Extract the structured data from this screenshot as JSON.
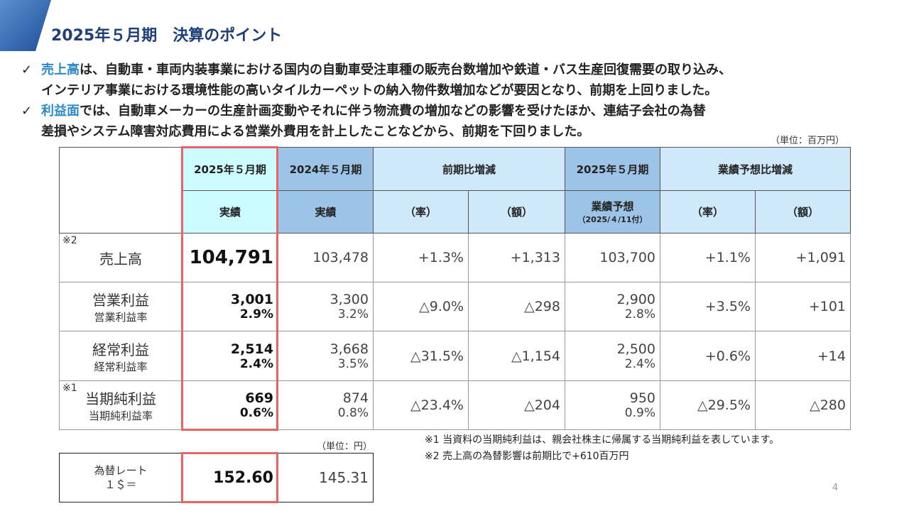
{
  "title": "2025年５月期　決算のポイント",
  "bullets": [
    {
      "hl": "売上高",
      "l1": "は、自動車・車両内装事業における国内の自動車受注車種の販売台数増加や鉄道・バス生産回復需要の取り込み、",
      "l2": "インテリア事業における環境性能の高いタイルカーペットの納入物件数増加などが要因となり、前期を上回りました。"
    },
    {
      "hl": "利益面",
      "l1": "では、自動車メーカーの生産計画変動やそれに伴う物流費の増加などの影響を受けたほか、連結子会社の為替",
      "l2": "差損やシステム障害対応費用による営業外費用を計上したことなどから、前期を下回りました。"
    }
  ],
  "check": "✓",
  "unit_main": "（単位：百万円）",
  "unit_fx": "（単位：円）",
  "header": {
    "c1": "2025年５月期",
    "c2": "2024年５月期",
    "c3": "前期比増減",
    "c5": "2025年５月期",
    "c6": "業績予想比増減",
    "c1b": "実績",
    "c2b": "実績",
    "rate": "（率）",
    "amt": "（額）",
    "c5b": "業績予想",
    "c5c": "（2025/４/11付）"
  },
  "rows": [
    {
      "label": "売上高",
      "note": "※2",
      "v": [
        "104,791",
        "103,478",
        "+1.3%",
        "+1,313",
        "103,700",
        "+1.1%",
        "+1,091"
      ]
    },
    {
      "label": "営業利益",
      "sub": "営業利益率",
      "v": [
        "3,001",
        "3,300",
        "△9.0%",
        "△298",
        "2,900",
        "+3.5%",
        "+101"
      ],
      "s": [
        "2.9%",
        "3.2%",
        "",
        "",
        "2.8%",
        "",
        ""
      ]
    },
    {
      "label": "経常利益",
      "sub": "経常利益率",
      "v": [
        "2,514",
        "3,668",
        "△31.5%",
        "△1,154",
        "2,500",
        "+0.6%",
        "+14"
      ],
      "s": [
        "2.4%",
        "3.5%",
        "",
        "",
        "2.4%",
        "",
        ""
      ]
    },
    {
      "label": "当期純利益",
      "note": "※1",
      "sub": "当期純利益率",
      "v": [
        "669",
        "874",
        "△23.4%",
        "△204",
        "950",
        "△29.5%",
        "△280"
      ],
      "s": [
        "0.6%",
        "0.8%",
        "",
        "",
        "0.9%",
        "",
        ""
      ]
    }
  ],
  "footnotes": [
    "※1 当資料の当期純利益は、親会社株主に帰属する当期純利益を表しています。",
    "※2 売上高の為替影響は前期比で+610百万円"
  ],
  "fx": {
    "label1": "為替レート",
    "label2": "１＄＝",
    "v1": "152.60",
    "v2": "145.31"
  },
  "page": "4"
}
